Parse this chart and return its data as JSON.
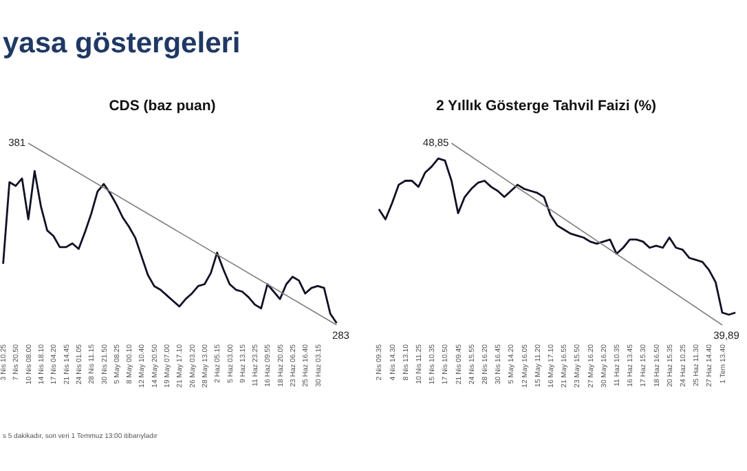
{
  "chart_data": [
    {
      "type": "line",
      "title": "CDS (baz puan)",
      "annotations": [
        "yasa göstergeleri",
        "s 5 dakikadır, son veri 1 Temmuz 13:00 itibarıyladır"
      ],
      "tick_labels": "x",
      "marker": "none",
      "categories": [
        "3 Nis 10.25",
        null,
        "7 Nis 20.50",
        null,
        "10 Nis 08.00",
        null,
        "14 Nis 18.10",
        null,
        "17 Nis 04.20",
        null,
        "21 Nis 14.45",
        null,
        "24 Nis 01.05",
        null,
        "28 Nis 11.15",
        null,
        "30 Nis 21.50",
        null,
        "5 May 08.25",
        null,
        "8 May 00.10",
        null,
        "12 May 10.40",
        null,
        "14 May 20.50",
        null,
        "19 May 07.00",
        null,
        "21 May 17.10",
        null,
        "26 May 03.20",
        null,
        "28 May 13.00",
        null,
        "2 Haz 05.15",
        null,
        "5 Haz 03.00",
        null,
        "9 Haz 13.15",
        null,
        "11 Haz 23.25",
        null,
        "16 Haz 09.55",
        null,
        "18 Haz 20.05",
        null,
        "23 Haz 06.25",
        null,
        "25 Haz 16.40",
        null,
        "30 Haz 03.15",
        null,
        null,
        null
      ],
      "series": [
        {
          "type": "line",
          "color": "#101025",
          "values": [
            316,
            360,
            358,
            362,
            340,
            366,
            347,
            334,
            331,
            325,
            325,
            327,
            324,
            333,
            343,
            355,
            359,
            354,
            348,
            341,
            336,
            330,
            320,
            310,
            304,
            302,
            299,
            296,
            293,
            297,
            300,
            304,
            305,
            311,
            322,
            313,
            305,
            302,
            301,
            298,
            294,
            292,
            305,
            301,
            297,
            305,
            309,
            307,
            300,
            303,
            304,
            303,
            289,
            284
          ]
        },
        {
          "type": "line",
          "color": "#808080",
          "values": [
            null,
            null,
            null,
            null,
            381,
            null,
            null,
            null,
            null,
            null,
            null,
            null,
            null,
            null,
            null,
            null,
            null,
            null,
            null,
            null,
            null,
            null,
            null,
            null,
            null,
            null,
            null,
            null,
            null,
            null,
            null,
            null,
            null,
            null,
            null,
            null,
            null,
            null,
            null,
            null,
            null,
            null,
            null,
            null,
            null,
            null,
            null,
            null,
            null,
            null,
            null,
            null,
            null,
            283
          ],
          "value_labels": [
            null,
            null,
            null,
            null,
            "381",
            null,
            null,
            null,
            null,
            null,
            null,
            null,
            null,
            null,
            null,
            null,
            null,
            null,
            null,
            null,
            null,
            null,
            null,
            null,
            null,
            null,
            null,
            null,
            null,
            null,
            null,
            null,
            null,
            null,
            null,
            null,
            null,
            null,
            null,
            null,
            null,
            null,
            null,
            null,
            null,
            null,
            null,
            null,
            null,
            null,
            null,
            null,
            null,
            "283"
          ]
        }
      ]
    },
    {
      "type": "line",
      "title": "2 Yıllık Gösterge Tahvil Faizi (%)",
      "tick_labels": "x",
      "marker": "none",
      "categories": [
        "2 Nis 09.35",
        null,
        "4 Nis 14.30",
        null,
        "8 Nis 13.10",
        null,
        "10 Nis 11.25",
        null,
        "15 Nis 10.35",
        null,
        "17 Nis 10.50",
        null,
        "21 Nis 09.45",
        null,
        "24 Nis 15.55",
        null,
        "28 Nis 16.20",
        null,
        "30 Nis 16.45",
        null,
        "5 May 14.20",
        null,
        "12 May 16.05",
        null,
        "15 May 11.20",
        null,
        "16 May 17.10",
        null,
        "21 May 16.55",
        null,
        "23 May 15.50",
        null,
        "27 May 16.20",
        null,
        "30 May 16.20",
        null,
        "11 Haz 10.35",
        null,
        "16 Haz 13.45",
        null,
        "17 Haz 15.30",
        null,
        "18 Haz 16.50",
        null,
        "20 Haz 15.35",
        null,
        "24 Haz 10.25",
        null,
        "25 Haz 11.30",
        null,
        "27 Haz 14.40",
        null,
        "1 Tem 13.40",
        null,
        null
      ],
      "series": [
        {
          "type": "line",
          "color": "#101025",
          "values": [
            45.6,
            45.1,
            45.9,
            46.8,
            47.0,
            47.0,
            46.7,
            47.4,
            47.7,
            48.1,
            48.0,
            47.0,
            45.4,
            46.2,
            46.6,
            46.9,
            47.0,
            46.7,
            46.5,
            46.2,
            46.5,
            46.8,
            46.6,
            46.5,
            46.4,
            46.2,
            45.3,
            44.8,
            44.6,
            44.4,
            44.3,
            44.2,
            44.0,
            43.9,
            44.0,
            44.1,
            43.4,
            43.7,
            44.1,
            44.1,
            44.0,
            43.7,
            43.8,
            43.7,
            44.2,
            43.7,
            43.6,
            43.2,
            43.1,
            43.0,
            42.6,
            42.0,
            40.5,
            40.4,
            40.5
          ]
        },
        {
          "type": "line",
          "color": "#808080",
          "values": [
            null,
            null,
            null,
            null,
            null,
            null,
            null,
            null,
            null,
            null,
            null,
            48.85,
            null,
            null,
            null,
            null,
            null,
            null,
            null,
            null,
            null,
            null,
            null,
            null,
            null,
            null,
            null,
            null,
            null,
            null,
            null,
            null,
            null,
            null,
            null,
            null,
            null,
            null,
            null,
            null,
            null,
            null,
            null,
            null,
            null,
            null,
            null,
            null,
            null,
            null,
            null,
            null,
            39.89,
            null,
            null
          ],
          "value_labels": [
            null,
            null,
            null,
            null,
            null,
            null,
            null,
            null,
            null,
            null,
            null,
            "48,85",
            null,
            null,
            null,
            null,
            null,
            null,
            null,
            null,
            null,
            null,
            null,
            null,
            null,
            null,
            null,
            null,
            null,
            null,
            null,
            null,
            null,
            null,
            null,
            null,
            null,
            null,
            null,
            null,
            null,
            null,
            null,
            null,
            null,
            null,
            null,
            null,
            null,
            null,
            null,
            null,
            "39,89",
            null,
            null
          ]
        }
      ]
    }
  ]
}
